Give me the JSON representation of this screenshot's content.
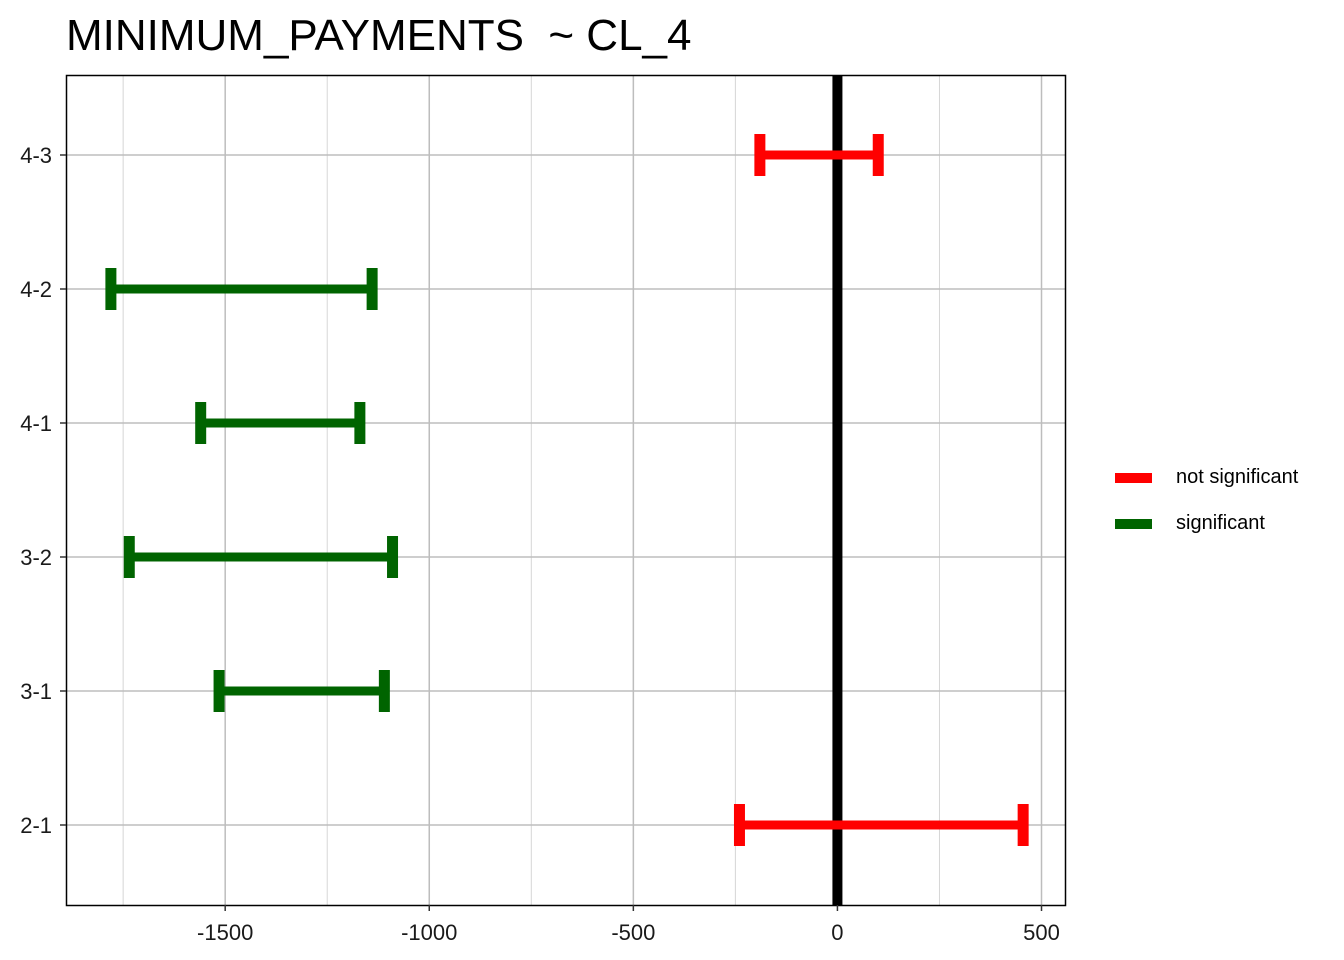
{
  "chart_data": {
    "type": "errorbar",
    "title": "MINIMUM_PAYMENTS  ~ CL_4",
    "xlabel": "",
    "ylabel": "",
    "xlim": [
      -1890,
      560
    ],
    "x_ticks": [
      -1500,
      -1000,
      -500,
      0,
      500
    ],
    "x_tick_labels": [
      "-1500",
      "-1000",
      "-500",
      "0",
      "500"
    ],
    "x_minor_gridlines": [
      -1750,
      -1250,
      -750,
      -250,
      250
    ],
    "categories": [
      "4-3",
      "4-2",
      "4-1",
      "3-2",
      "3-1",
      "2-1"
    ],
    "intervals": [
      {
        "comparison": "4-3",
        "lower": -190,
        "upper": 100,
        "group": "not significant"
      },
      {
        "comparison": "4-2",
        "lower": -1780,
        "upper": -1140,
        "group": "significant"
      },
      {
        "comparison": "4-1",
        "lower": -1560,
        "upper": -1170,
        "group": "significant"
      },
      {
        "comparison": "3-2",
        "lower": -1735,
        "upper": -1090,
        "group": "significant"
      },
      {
        "comparison": "3-1",
        "lower": -1515,
        "upper": -1110,
        "group": "significant"
      },
      {
        "comparison": "2-1",
        "lower": -240,
        "upper": 455,
        "group": "not significant"
      }
    ],
    "reference_line": 0,
    "grid": true,
    "legend": {
      "position": "right",
      "entries": [
        {
          "label": "not significant",
          "color": "#ff0000"
        },
        {
          "label": "significant",
          "color": "#006400"
        }
      ]
    },
    "colors": {
      "not significant": "#ff0000",
      "significant": "#006400",
      "reference": "#000000"
    }
  }
}
